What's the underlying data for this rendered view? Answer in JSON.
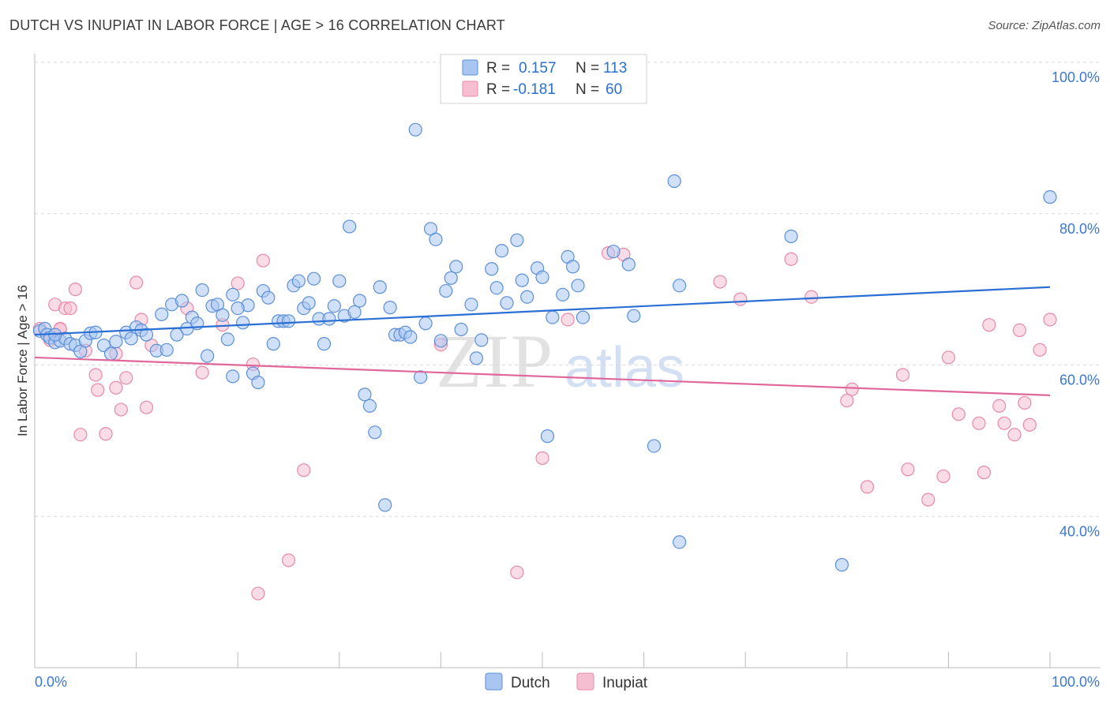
{
  "title": "DUTCH VS INUPIAT IN LABOR FORCE | AGE > 16 CORRELATION CHART",
  "source": "Source: ZipAtlas.com",
  "watermark": {
    "zip": "ZIP",
    "atlas": "atlas"
  },
  "colors": {
    "dutch_fill": "#a9c6f2",
    "dutch_stroke": "#5b8fd8",
    "dutch_line": "#2a6fd4",
    "inupiat_fill": "#f6bfd1",
    "inupiat_stroke": "#e889a8",
    "inupiat_line": "#e0679a",
    "tick_text": "#3b78d0",
    "grid": "#d8d8d8",
    "axis": "#bbbbbb"
  },
  "stats_legend": {
    "rows": [
      {
        "series": "dutch",
        "r_label": "R =",
        "r_value": "0.157",
        "n_label": "N =",
        "n_value": "113"
      },
      {
        "series": "inupiat",
        "r_label": "R =",
        "r_value": "-0.181",
        "n_label": "N =",
        "n_value": "60"
      }
    ]
  },
  "chart_data": {
    "type": "scatter",
    "title": "DUTCH VS INUPIAT IN LABOR FORCE | AGE > 16 CORRELATION CHART",
    "xlabel": "",
    "ylabel": "In Labor Force | Age > 16",
    "xlim": [
      0,
      100
    ],
    "ylim": [
      20,
      100
    ],
    "x_tick_labels": [
      {
        "value": 0,
        "label": "0.0%"
      },
      {
        "value": 100,
        "label": "100.0%"
      }
    ],
    "y_tick_labels": [
      {
        "value": 100,
        "label": "100.0%"
      },
      {
        "value": 80,
        "label": "80.0%"
      },
      {
        "value": 60,
        "label": "60.0%"
      },
      {
        "value": 40,
        "label": "40.0%"
      }
    ],
    "grid": true,
    "legend": [
      "Dutch",
      "Inupiat"
    ],
    "series": [
      {
        "name": "Dutch",
        "color": "#5b8fd8",
        "r": 0.157,
        "n": 113,
        "trend": {
          "x": [
            0,
            100
          ],
          "y": [
            64.0,
            70.3
          ]
        },
        "points": [
          [
            0.5,
            64.5
          ],
          [
            1.0,
            64.8
          ],
          [
            1.2,
            64.0
          ],
          [
            1.5,
            63.6
          ],
          [
            2.0,
            63.0
          ],
          [
            2.5,
            63.2
          ],
          [
            3.0,
            63.5
          ],
          [
            3.5,
            62.8
          ],
          [
            4.0,
            62.6
          ],
          [
            4.5,
            61.8
          ],
          [
            5.0,
            63.2
          ],
          [
            5.5,
            64.2
          ],
          [
            6.0,
            64.3
          ],
          [
            6.8,
            62.6
          ],
          [
            7.5,
            61.5
          ],
          [
            8.0,
            63.1
          ],
          [
            9.0,
            64.3
          ],
          [
            9.5,
            63.5
          ],
          [
            10.0,
            65.0
          ],
          [
            10.5,
            64.6
          ],
          [
            12.0,
            61.9
          ],
          [
            12.5,
            66.7
          ],
          [
            13.0,
            62.0
          ],
          [
            13.5,
            68.0
          ],
          [
            14.0,
            64.0
          ],
          [
            14.5,
            68.5
          ],
          [
            15.0,
            64.8
          ],
          [
            15.5,
            66.3
          ],
          [
            16.0,
            65.5
          ],
          [
            16.5,
            69.9
          ],
          [
            17.0,
            61.2
          ],
          [
            17.5,
            67.8
          ],
          [
            18.0,
            68.0
          ],
          [
            18.5,
            66.6
          ],
          [
            19.0,
            63.4
          ],
          [
            19.5,
            69.3
          ],
          [
            19.5,
            58.5
          ],
          [
            20.5,
            65.6
          ],
          [
            21.0,
            67.9
          ],
          [
            21.5,
            58.9
          ],
          [
            22.0,
            57.7
          ],
          [
            22.5,
            69.8
          ],
          [
            23.0,
            68.9
          ],
          [
            23.5,
            62.8
          ],
          [
            24.0,
            65.8
          ],
          [
            24.5,
            65.8
          ],
          [
            25.0,
            65.8
          ],
          [
            25.5,
            70.5
          ],
          [
            26.0,
            71.1
          ],
          [
            26.5,
            67.5
          ],
          [
            27.0,
            68.2
          ],
          [
            27.5,
            71.4
          ],
          [
            28.0,
            66.1
          ],
          [
            28.5,
            62.8
          ],
          [
            29.0,
            66.1
          ],
          [
            29.5,
            67.8
          ],
          [
            30.0,
            71.1
          ],
          [
            30.5,
            66.5
          ],
          [
            31.0,
            78.3
          ],
          [
            31.5,
            67.0
          ],
          [
            32.0,
            68.5
          ],
          [
            32.5,
            56.1
          ],
          [
            33.0,
            54.6
          ],
          [
            33.5,
            51.1
          ],
          [
            34.0,
            70.3
          ],
          [
            34.5,
            41.5
          ],
          [
            35.0,
            67.6
          ],
          [
            35.5,
            64.0
          ],
          [
            36.0,
            64.0
          ],
          [
            36.5,
            64.3
          ],
          [
            37.0,
            63.7
          ],
          [
            37.5,
            91.1
          ],
          [
            38.0,
            58.4
          ],
          [
            38.5,
            65.5
          ],
          [
            39.0,
            78.0
          ],
          [
            39.5,
            76.6
          ],
          [
            40.0,
            63.2
          ],
          [
            40.5,
            69.8
          ],
          [
            41.0,
            71.5
          ],
          [
            41.5,
            73.0
          ],
          [
            42.0,
            64.7
          ],
          [
            43.0,
            68.0
          ],
          [
            43.5,
            60.9
          ],
          [
            44.0,
            63.3
          ],
          [
            45.0,
            72.7
          ],
          [
            45.5,
            70.2
          ],
          [
            46.0,
            75.1
          ],
          [
            46.5,
            68.2
          ],
          [
            47.5,
            76.5
          ],
          [
            48.0,
            71.2
          ],
          [
            48.5,
            69.0
          ],
          [
            49.5,
            72.8
          ],
          [
            50.0,
            71.6
          ],
          [
            50.5,
            50.6
          ],
          [
            51.0,
            66.3
          ],
          [
            52.0,
            69.3
          ],
          [
            52.5,
            74.3
          ],
          [
            53.0,
            73.0
          ],
          [
            53.5,
            70.5
          ],
          [
            54.0,
            66.3
          ],
          [
            57.0,
            75.0
          ],
          [
            58.5,
            73.3
          ],
          [
            59.0,
            66.5
          ],
          [
            61.0,
            49.3
          ],
          [
            63.0,
            84.3
          ],
          [
            63.5,
            70.5
          ],
          [
            63.5,
            36.6
          ],
          [
            74.5,
            77.0
          ],
          [
            79.5,
            33.6
          ],
          [
            100.0,
            82.2
          ],
          [
            2.0,
            64.0
          ],
          [
            11.0,
            64.0
          ],
          [
            20.0,
            67.5
          ]
        ]
      },
      {
        "name": "Inupiat",
        "color": "#e889a8",
        "r": -0.181,
        "n": 60,
        "trend": {
          "x": [
            0,
            100
          ],
          "y": [
            61.0,
            56.0
          ]
        },
        "points": [
          [
            0.5,
            64.8
          ],
          [
            1.5,
            63.3
          ],
          [
            2.0,
            68.0
          ],
          [
            2.5,
            64.7
          ],
          [
            3.0,
            67.5
          ],
          [
            3.5,
            67.5
          ],
          [
            4.0,
            70.0
          ],
          [
            4.5,
            50.8
          ],
          [
            5.0,
            61.9
          ],
          [
            6.0,
            58.7
          ],
          [
            6.2,
            56.7
          ],
          [
            7.0,
            50.9
          ],
          [
            8.0,
            61.5
          ],
          [
            8.0,
            57.0
          ],
          [
            8.5,
            54.1
          ],
          [
            9.0,
            58.3
          ],
          [
            10.0,
            70.9
          ],
          [
            10.5,
            66.0
          ],
          [
            11.0,
            54.4
          ],
          [
            11.5,
            62.6
          ],
          [
            15.0,
            67.5
          ],
          [
            16.5,
            59.0
          ],
          [
            20.0,
            70.8
          ],
          [
            21.5,
            60.1
          ],
          [
            22.0,
            29.8
          ],
          [
            22.5,
            73.8
          ],
          [
            25.0,
            34.2
          ],
          [
            26.5,
            46.1
          ],
          [
            40.0,
            62.7
          ],
          [
            47.5,
            32.6
          ],
          [
            50.0,
            47.7
          ],
          [
            52.5,
            66.0
          ],
          [
            56.5,
            74.8
          ],
          [
            58.0,
            74.6
          ],
          [
            67.5,
            71.0
          ],
          [
            69.5,
            68.7
          ],
          [
            74.5,
            74.0
          ],
          [
            76.5,
            69.0
          ],
          [
            80.0,
            55.3
          ],
          [
            80.5,
            56.8
          ],
          [
            82.0,
            43.9
          ],
          [
            85.5,
            58.7
          ],
          [
            86.0,
            46.2
          ],
          [
            88.0,
            42.2
          ],
          [
            89.5,
            45.3
          ],
          [
            90.0,
            61.0
          ],
          [
            91.0,
            53.5
          ],
          [
            93.0,
            52.3
          ],
          [
            93.5,
            45.8
          ],
          [
            94.0,
            65.3
          ],
          [
            95.0,
            54.6
          ],
          [
            95.5,
            52.3
          ],
          [
            96.5,
            50.8
          ],
          [
            97.0,
            64.6
          ],
          [
            97.5,
            55.0
          ],
          [
            98.0,
            52.1
          ],
          [
            99.0,
            62.0
          ],
          [
            100.0,
            66.0
          ],
          [
            18.5,
            65.3
          ],
          [
            2.5,
            64.8
          ]
        ]
      }
    ]
  },
  "bottom_legend": {
    "items": [
      {
        "series": "dutch",
        "label": "Dutch"
      },
      {
        "series": "inupiat",
        "label": "Inupiat"
      }
    ]
  }
}
